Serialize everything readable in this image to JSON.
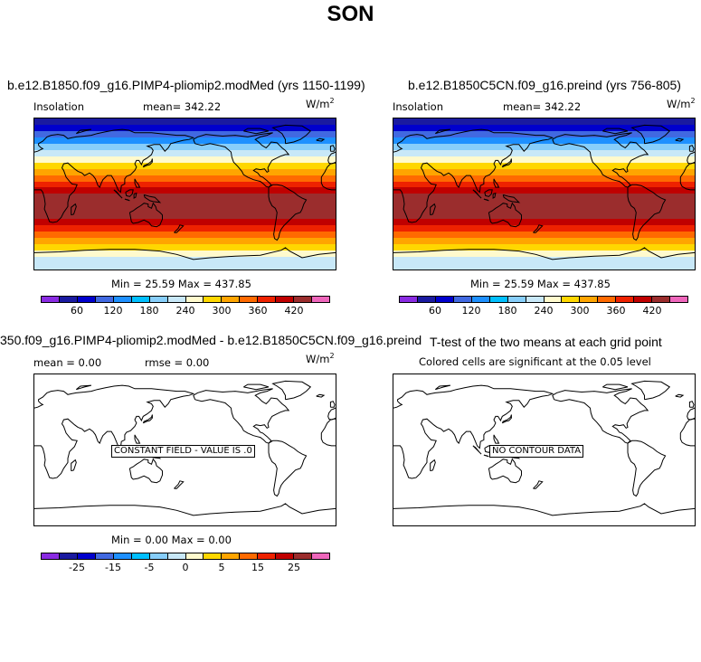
{
  "title": "SON",
  "panels": {
    "top_left": {
      "title": "b.e12.B1850.f09_g16.PIMP4-pliomip2.modMed (yrs 1150-1199)",
      "variable": "Insolation",
      "mean_text": "mean= 342.22",
      "units_base": "W/m",
      "units_exp": "2",
      "minmax_text": "Min =  25.59 Max = 437.85"
    },
    "top_right": {
      "title": "b.e12.B1850C5CN.f09_g16.preind (yrs 756-805)",
      "variable": "Insolation",
      "mean_text": "mean= 342.22",
      "units_base": "W/m",
      "units_exp": "2",
      "minmax_text": "Min =  25.59 Max = 437.85"
    },
    "bottom_left": {
      "title": "350.f09_g16.PIMP4-pliomip2.modMed - b.e12.B1850C5CN.f09_g16.preind",
      "mean_text": "mean =    0.00",
      "rmse_text": "rmse =    0.00",
      "units_base": "W/m",
      "units_exp": "2",
      "message": "CONSTANT FIELD - VALUE IS .0",
      "minmax_text": "Min =    0.00 Max =    0.00"
    },
    "bottom_right": {
      "title": "T-test of the two means at each grid point",
      "subtitle": "Colored cells are significant at the 0.05 level",
      "message": "NO CONTOUR DATA"
    }
  },
  "colorbars": {
    "insolation": {
      "colors": [
        "#8a2be2",
        "#1a1aa0",
        "#0000cd",
        "#4169e1",
        "#1e90ff",
        "#00bfff",
        "#87cefa",
        "#c8e8f8",
        "#fffacd",
        "#ffd700",
        "#ffa500",
        "#ff6a00",
        "#ee2200",
        "#c00000",
        "#9b2d2d",
        "#ee66bb"
      ],
      "tick_labels": [
        "60",
        "120",
        "180",
        "240",
        "300",
        "360",
        "420"
      ],
      "tick_edges": [
        2,
        4,
        6,
        8,
        10,
        12,
        14
      ]
    },
    "difference": {
      "colors": [
        "#8a2be2",
        "#1a1aa0",
        "#0000cd",
        "#4169e1",
        "#1e90ff",
        "#00bfff",
        "#87cefa",
        "#c8e8f8",
        "#fffacd",
        "#ffd700",
        "#ffa500",
        "#ff6a00",
        "#ee2200",
        "#c00000",
        "#9b2d2d",
        "#ee66bb"
      ],
      "tick_labels": [
        "-25",
        "-15",
        "-5",
        "0",
        "5",
        "15",
        "25"
      ],
      "tick_edges": [
        2,
        4,
        6,
        8,
        10,
        12,
        14
      ]
    }
  },
  "insolation_bands": [
    "#1a1aa0",
    "#0000cd",
    "#4169e1",
    "#1e90ff",
    "#87cefa",
    "#c8e8f8",
    "#fffacd",
    "#ffd700",
    "#ffa500",
    "#ff6a00",
    "#ee2200",
    "#c00000",
    "#9b2d2d",
    "#9b2d2d",
    "#9b2d2d",
    "#9b2d2d",
    "#c00000",
    "#ee2200",
    "#ff6a00",
    "#ffa500",
    "#ffd700",
    "#fffacd",
    "#c8e8f8",
    "#c8e8f8"
  ]
}
